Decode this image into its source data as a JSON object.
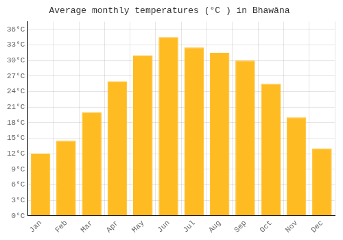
{
  "chart_data": {
    "type": "bar",
    "title": "Average monthly temperatures (°C ) in Bhawāna",
    "categories": [
      "Jan",
      "Feb",
      "Mar",
      "Apr",
      "May",
      "Jun",
      "Jul",
      "Aug",
      "Sep",
      "Oct",
      "Nov",
      "Dec"
    ],
    "values": [
      12,
      14.5,
      20,
      26,
      31,
      34.5,
      32.5,
      31.5,
      30,
      25.5,
      19,
      13
    ],
    "color": "#FFBB22",
    "ylim": [
      0,
      37.5
    ],
    "yticks": [
      {
        "value": 0,
        "label": "0°C"
      },
      {
        "value": 3,
        "label": "3°C"
      },
      {
        "value": 6,
        "label": "6°C"
      },
      {
        "value": 9,
        "label": "9°C"
      },
      {
        "value": 12,
        "label": "12°C"
      },
      {
        "value": 15,
        "label": "15°C"
      },
      {
        "value": 18,
        "label": "18°C"
      },
      {
        "value": 21,
        "label": "21°C"
      },
      {
        "value": 24,
        "label": "24°C"
      },
      {
        "value": 27,
        "label": "27°C"
      },
      {
        "value": 30,
        "label": "30°C"
      },
      {
        "value": 33,
        "label": "33°C"
      },
      {
        "value": 36,
        "label": "36°C"
      }
    ],
    "grid": true
  }
}
